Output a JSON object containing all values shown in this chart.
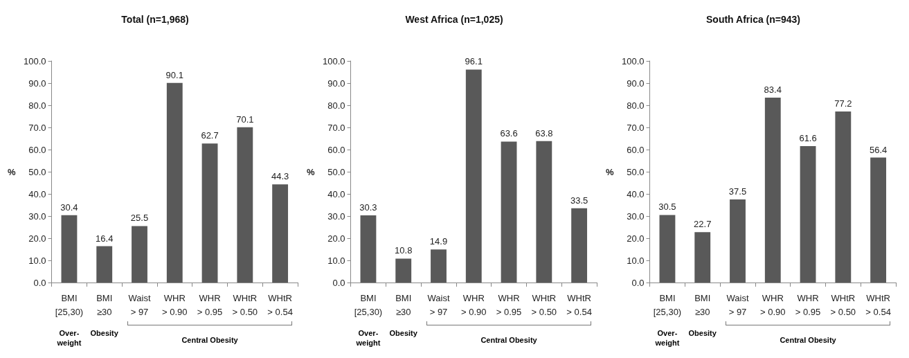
{
  "chart_data": [
    {
      "type": "bar",
      "title": "Total (n=1,968)",
      "ylabel": "%",
      "categories": [
        "BMI\n[25,30)",
        "BMI\n≥30",
        "Waist\n> 97",
        "WHR\n> 0.90",
        "WHR\n> 0.95",
        "WHtR\n> 0.50",
        "WHtR\n> 0.54"
      ],
      "values": [
        30.4,
        16.4,
        25.5,
        90.1,
        62.7,
        70.1,
        44.3
      ],
      "color": "#595959",
      "ylim": [
        0,
        100
      ],
      "yticks": [
        {
          "value": 0,
          "label": "0.0"
        },
        {
          "value": 10,
          "label": "10.0"
        },
        {
          "value": 20,
          "label": "20.0"
        },
        {
          "value": 30,
          "label": "30.0"
        },
        {
          "value": 40,
          "label": "40.0"
        },
        {
          "value": 50,
          "label": "50.0"
        },
        {
          "value": 60,
          "label": "60.0"
        },
        {
          "value": 70,
          "label": "70.0"
        },
        {
          "value": 80,
          "label": "80.0"
        },
        {
          "value": 90,
          "label": "90.0"
        },
        {
          "value": 100,
          "label": "100.0"
        }
      ],
      "data_labels": true,
      "grid": false,
      "annotations": [
        "Over-\nweight",
        "Obesity",
        "Central Obesity"
      ]
    },
    {
      "type": "bar",
      "title": "West Africa (n=1,025)",
      "ylabel": "%",
      "categories": [
        "BMI\n[25,30)",
        "BMI\n≥30",
        "Waist\n> 97",
        "WHR\n> 0.90",
        "WHR\n> 0.95",
        "WHtR\n> 0.50",
        "WHtR\n> 0.54"
      ],
      "values": [
        30.3,
        10.8,
        14.9,
        96.1,
        63.6,
        63.8,
        33.5
      ],
      "color": "#595959",
      "ylim": [
        0,
        100
      ],
      "yticks": [
        {
          "value": 0,
          "label": "0.0"
        },
        {
          "value": 10,
          "label": "10.0"
        },
        {
          "value": 20,
          "label": "20.0"
        },
        {
          "value": 30,
          "label": "30.0"
        },
        {
          "value": 40,
          "label": "40.0"
        },
        {
          "value": 50,
          "label": "50.0"
        },
        {
          "value": 60,
          "label": "60.0"
        },
        {
          "value": 70,
          "label": "70.0"
        },
        {
          "value": 80,
          "label": "80.0"
        },
        {
          "value": 90,
          "label": "90.0"
        },
        {
          "value": 100,
          "label": "100.0"
        }
      ],
      "data_labels": true,
      "grid": false,
      "annotations": [
        "Over-\nweight",
        "Obesity",
        "Central Obesity"
      ]
    },
    {
      "type": "bar",
      "title": "South Africa (n=943)",
      "ylabel": "%",
      "categories": [
        "BMI\n[25,30)",
        "BMI\n≥30",
        "Waist\n> 97",
        "WHR\n> 0.90",
        "WHR\n> 0.95",
        "WHtR\n> 0.50",
        "WHtR\n> 0.54"
      ],
      "values": [
        30.5,
        22.7,
        37.5,
        83.4,
        61.6,
        77.2,
        56.4
      ],
      "color": "#595959",
      "ylim": [
        0,
        100
      ],
      "yticks": [
        {
          "value": 0,
          "label": "0.0"
        },
        {
          "value": 10,
          "label": "10.0"
        },
        {
          "value": 20,
          "label": "20.0"
        },
        {
          "value": 30,
          "label": "30.0"
        },
        {
          "value": 40,
          "label": "40.0"
        },
        {
          "value": 50,
          "label": "50.0"
        },
        {
          "value": 60,
          "label": "60.0"
        },
        {
          "value": 70,
          "label": "70.0"
        },
        {
          "value": 80,
          "label": "80.0"
        },
        {
          "value": 90,
          "label": "90.0"
        },
        {
          "value": 100,
          "label": "100.0"
        }
      ],
      "data_labels": true,
      "grid": false,
      "annotations": [
        "Over-\nweight",
        "Obesity",
        "Central Obesity"
      ]
    }
  ]
}
